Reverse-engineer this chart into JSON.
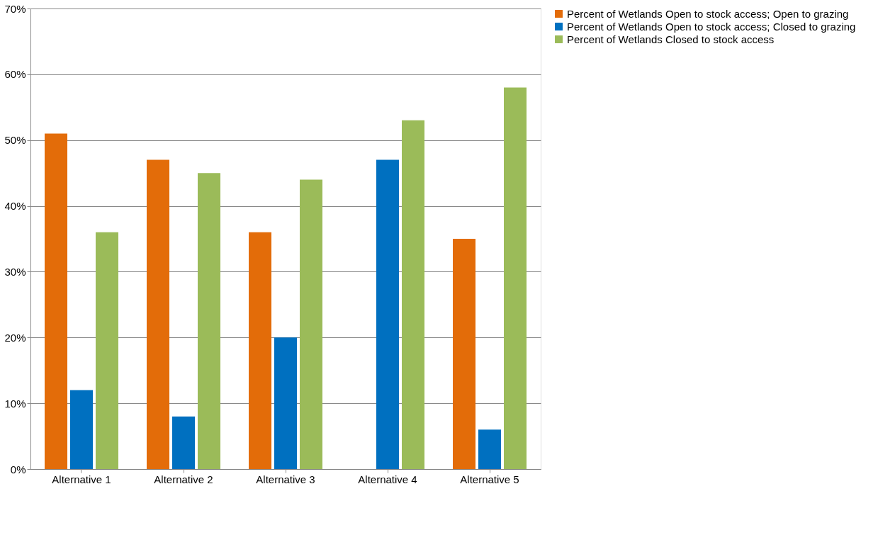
{
  "chart_data": {
    "type": "bar",
    "categories": [
      "Alternative 1",
      "Alternative 2",
      "Alternative 3",
      "Alternative 4",
      "Alternative 5"
    ],
    "series": [
      {
        "name": "Percent of Wetlands Open to stock access; Open to grazing",
        "color": "#e36c09",
        "values": [
          51,
          47,
          36,
          null,
          35
        ]
      },
      {
        "name": "Percent of Wetlands Open to stock access; Closed to grazing",
        "color": "#0070c0",
        "values": [
          12,
          8,
          20,
          47,
          6
        ]
      },
      {
        "name": "Percent of Wetlands Closed to stock access",
        "color": "#9bbb59",
        "values": [
          36,
          45,
          44,
          53,
          58
        ]
      }
    ],
    "ylim": [
      0,
      70
    ],
    "yticks": [
      {
        "value": 0,
        "label": "0%"
      },
      {
        "value": 10,
        "label": "10%"
      },
      {
        "value": 20,
        "label": "20%"
      },
      {
        "value": 30,
        "label": "30%"
      },
      {
        "value": 40,
        "label": "40%"
      },
      {
        "value": 50,
        "label": "50%"
      },
      {
        "value": 60,
        "label": "60%"
      },
      {
        "value": 70,
        "label": "70%"
      }
    ],
    "grid": "y",
    "legend": "right"
  }
}
